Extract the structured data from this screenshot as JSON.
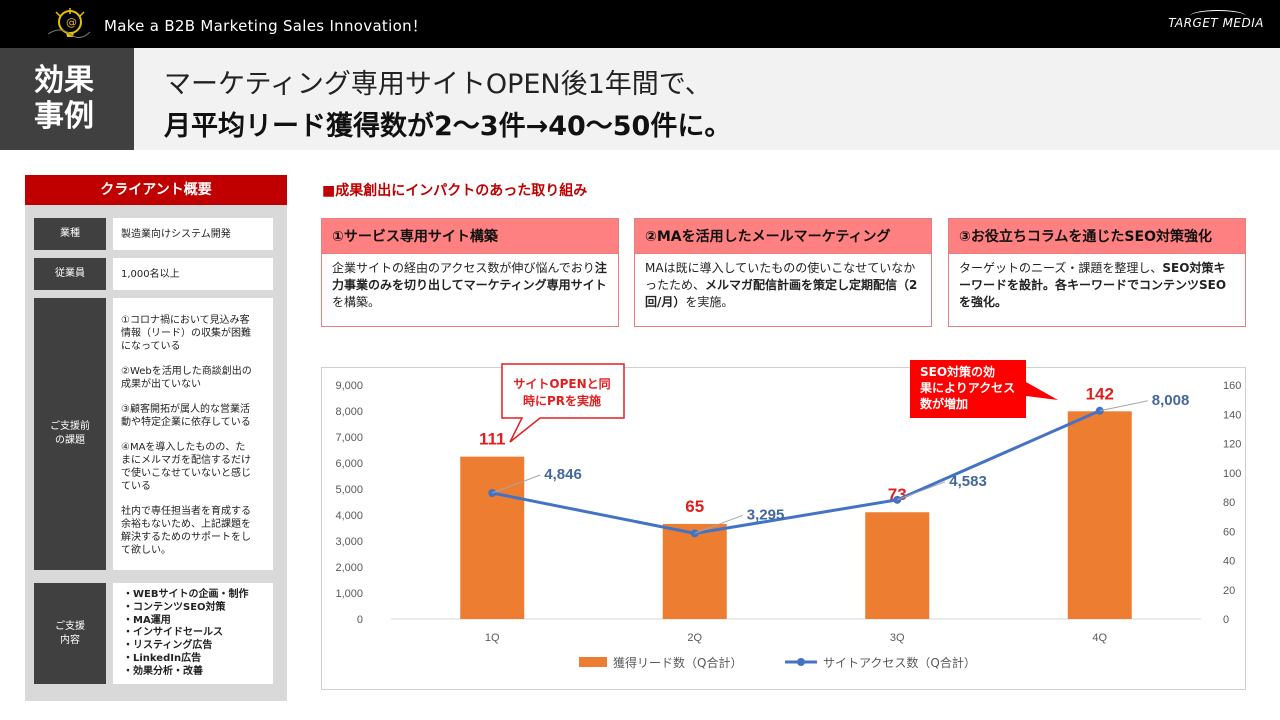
{
  "topbar": {
    "tagline": "Make a B2B Marketing Sales Innovation！",
    "brand": "TARGET MEDIA"
  },
  "header": {
    "badge_line1": "効果",
    "badge_line2": "事例",
    "headline_line1": "マーケティング専用サイトOPEN後1年間で、",
    "headline_line2": "月平均リード獲得数が2～3件→40～50件に。"
  },
  "client": {
    "title": "クライアント概要",
    "industry_label": "業種",
    "industry_value": "製造業向けシステム開発",
    "employees_label": "従業員",
    "employees_value": "1,000名以上",
    "issues_label": "ご支援前\nの課題",
    "issues": [
      "①コロナ禍において見込み客\n情報（リード）の収集が困難\nになっている",
      "②Webを活用した商談創出の\n成果が出ていない",
      "③顧客開拓が属人的な営業活\n動や特定企業に依存している",
      "④MAを導入したものの、た\nまにメルマガを配信するだけ\nで使いこなせていないと感じ\nている",
      "社内で専任担当者を育成する\n余裕もないため、上記課題を\n解決するためのサポートをし\nて欲しい。"
    ],
    "support_label": "ご支援\n内容",
    "support_items": "・WEBサイトの企画・制作\n・コンテンツSEO対策\n・MA運用\n・インサイドセールス\n・リスティング広告\n・LinkedIn広告\n・効果分析・改善"
  },
  "initiatives": {
    "section_title": "■成果創出にインパクトのあった取り組み",
    "item1_title": "①サービス専用サイト構築",
    "item1_text_a": "企業サイトの経由のアクセス数が伸び悩んでおり",
    "item1_text_b": "注力事業のみを切り出してマーケティング専用サイト",
    "item1_text_c": "を構築。",
    "item2_title": "②MAを活用したメールマーケティング",
    "item2_text_a": "MAは既に導入していたものの使いこなせていなかったため、",
    "item2_text_b": "メルマガ配信計画を策定し定期配信（2回/月）",
    "item2_text_c": "を実施。",
    "item3_title": "③お役立ちコラムを通じたSEO対策強化",
    "item3_text_a": "ターゲットのニーズ・課題を整理し、",
    "item3_text_b": "SEO対策キーワードを設計。各キーワードでコンテンツSEOを強化。",
    "item3_text_c": ""
  },
  "callouts": {
    "left": "サイトOPENと同\n時にPRを実施",
    "right": "SEO対策の効\n果によりアクセス\n数が増加"
  },
  "chart_data": {
    "type": "bar",
    "categories": [
      "1Q",
      "2Q",
      "3Q",
      "4Q"
    ],
    "series": [
      {
        "name": "獲得リード数（Q合計）",
        "type": "bar",
        "axis": "right",
        "values": [
          111,
          65,
          73,
          142
        ],
        "color": "#ed7d31"
      },
      {
        "name": "サイトアクセス数（Q合計）",
        "type": "line",
        "axis": "left",
        "values": [
          4846,
          3295,
          4583,
          8008
        ],
        "color": "#4472c4"
      }
    ],
    "left_axis": {
      "ylim": [
        0,
        9000
      ],
      "ticks": [
        "0",
        "1,000",
        "2,000",
        "3,000",
        "4,000",
        "5,000",
        "6,000",
        "7,000",
        "8,000",
        "9,000"
      ]
    },
    "right_axis": {
      "ylim": [
        0,
        160
      ],
      "ticks": [
        "0",
        "20",
        "40",
        "60",
        "80",
        "100",
        "120",
        "140",
        "160"
      ]
    },
    "bar_labels": [
      "111",
      "65",
      "73",
      "142"
    ],
    "line_labels": [
      "4,846",
      "3,295",
      "4,583",
      "8,008"
    ],
    "legend_position": "bottom"
  }
}
